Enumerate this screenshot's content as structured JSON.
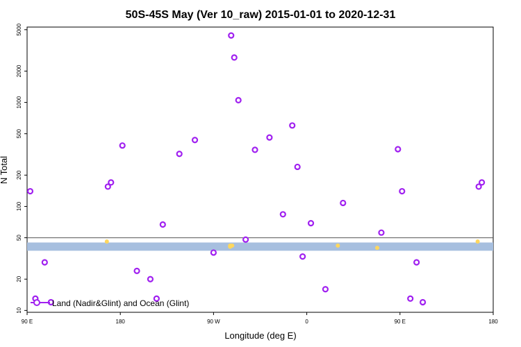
{
  "chart_data": {
    "type": "scatter",
    "title": "50S-45S May (Ver 10_raw)   2015-01-01 to 2020-12-31",
    "xlabel": "Longitude (deg E)",
    "ylabel": "N Total",
    "x_ticks": [
      {
        "value": 90,
        "label": "90 E"
      },
      {
        "value": 180,
        "label": "180"
      },
      {
        "value": 270,
        "label": "90 W"
      },
      {
        "value": 360,
        "label": "0"
      },
      {
        "value": 450,
        "label": "90 E"
      },
      {
        "value": 540,
        "label": "180"
      }
    ],
    "xlim": [
      90,
      540
    ],
    "y_scale": "log",
    "ylim": [
      9.6,
      5300
    ],
    "y_ticks": [
      10,
      20,
      50,
      100,
      200,
      500,
      1000,
      2000,
      5000
    ],
    "reference_line_y": 50,
    "band": {
      "y_low": 37.5,
      "y_high": 45,
      "color": "#a7bfdf"
    },
    "legend": {
      "position": "bottom-left",
      "label": "Land (Nadir&Glint) and Ocean (Glint)"
    },
    "series": [
      {
        "name": "Land (Nadir&Glint) and Ocean (Glint)",
        "color": "#a020f0",
        "marker": "open-circle",
        "points": [
          [
            93,
            140
          ],
          [
            98,
            13
          ],
          [
            107,
            29
          ],
          [
            113,
            12
          ],
          [
            168,
            155
          ],
          [
            171,
            170
          ],
          [
            182,
            385
          ],
          [
            196,
            24
          ],
          [
            209,
            20
          ],
          [
            215,
            13
          ],
          [
            221,
            67
          ],
          [
            237,
            320
          ],
          [
            252,
            435
          ],
          [
            270,
            36
          ],
          [
            287,
            4400
          ],
          [
            290,
            2700
          ],
          [
            294,
            1050
          ],
          [
            301,
            48
          ],
          [
            310,
            350
          ],
          [
            324,
            460
          ],
          [
            337,
            84
          ],
          [
            346,
            600
          ],
          [
            351,
            240
          ],
          [
            356,
            33
          ],
          [
            364,
            69
          ],
          [
            378,
            16
          ],
          [
            395,
            108
          ],
          [
            432,
            56
          ],
          [
            448,
            355
          ],
          [
            452,
            140
          ],
          [
            460,
            13
          ],
          [
            466,
            29
          ],
          [
            472,
            12
          ],
          [
            526,
            155
          ],
          [
            529,
            170
          ]
        ]
      },
      {
        "name": "",
        "color": "#ffd75e",
        "marker": "small-dot",
        "points": [
          [
            167,
            46
          ],
          [
            286,
            42
          ],
          [
            288,
            42
          ],
          [
            286,
            41
          ],
          [
            390,
            42
          ],
          [
            428,
            40
          ],
          [
            525,
            46
          ]
        ]
      }
    ]
  }
}
